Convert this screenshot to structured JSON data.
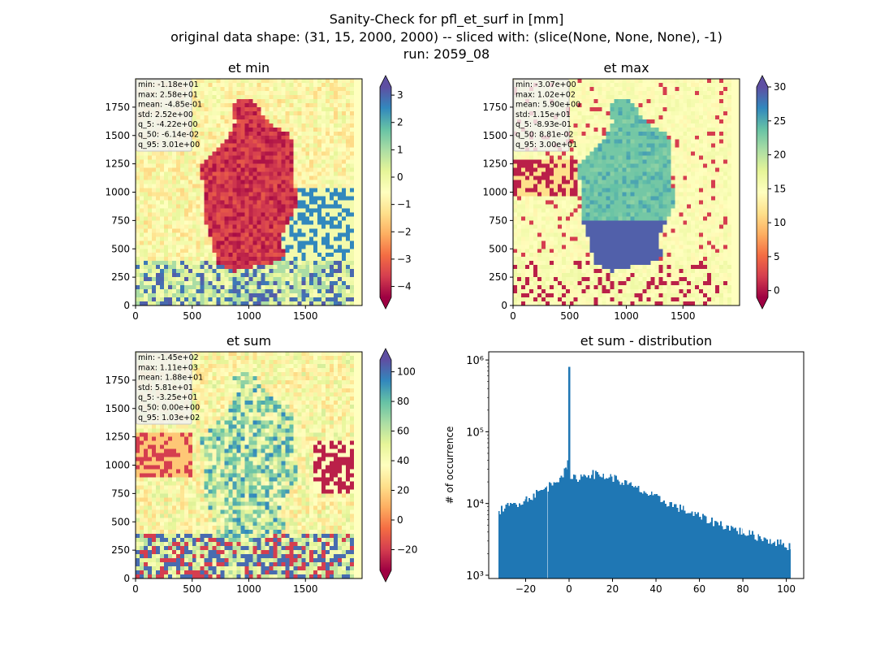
{
  "figure": {
    "suptitle_lines": [
      "Sanity-Check for pfl_et_surf in [mm]",
      "original data shape: (31, 15, 2000, 2000) -- sliced with: (slice(None, None, None), -1)",
      "run: 2059_08"
    ]
  },
  "chart_data": [
    {
      "type": "heatmap",
      "title": "et min",
      "xlabel": "",
      "ylabel": "",
      "x_ticks": [
        "0",
        "500",
        "1000",
        "1500"
      ],
      "y_ticks": [
        "0",
        "250",
        "500",
        "750",
        "1000",
        "1250",
        "1500",
        "1750"
      ],
      "grid_extent": [
        0,
        2000
      ],
      "colormap": "Spectral",
      "colorbar_range": [
        -4.4,
        3.3
      ],
      "colorbar_ticks": [
        "3",
        "2",
        "1",
        "0",
        "−1",
        "−2",
        "−3",
        "−4"
      ],
      "colorbar_extend": "both",
      "stats": [
        "min: -1.18e+01",
        "max: 2.58e+01",
        "mean: -4.85e-01",
        "std: 2.52e+00",
        "q_5: -4.22e+00",
        "q_50: -6.14e-02",
        "q_95: 3.01e+00"
      ]
    },
    {
      "type": "heatmap",
      "title": "et max",
      "xlabel": "",
      "ylabel": "",
      "x_ticks": [
        "0",
        "500",
        "1000",
        "1500"
      ],
      "y_ticks": [
        "0",
        "250",
        "500",
        "750",
        "1000",
        "1250",
        "1500",
        "1750"
      ],
      "grid_extent": [
        0,
        2000
      ],
      "colormap": "Spectral",
      "colorbar_range": [
        -1,
        30
      ],
      "colorbar_ticks": [
        "30",
        "25",
        "20",
        "15",
        "10",
        "5",
        "0"
      ],
      "colorbar_extend": "both",
      "stats": [
        "min: -3.07e+00",
        "max: 1.02e+02",
        "mean: 5.90e+00",
        "std: 1.15e+01",
        "q_5: -8.93e-01",
        "q_50: 8.81e-02",
        "q_95: 3.00e+01"
      ]
    },
    {
      "type": "heatmap",
      "title": "et sum",
      "xlabel": "",
      "ylabel": "",
      "x_ticks": [
        "0",
        "500",
        "1000",
        "1500"
      ],
      "y_ticks": [
        "0",
        "250",
        "500",
        "750",
        "1000",
        "1250",
        "1500",
        "1750"
      ],
      "grid_extent": [
        0,
        2000
      ],
      "colormap": "Spectral",
      "colorbar_range": [
        -34,
        108
      ],
      "colorbar_ticks": [
        "100",
        "80",
        "60",
        "40",
        "20",
        "0",
        "−20"
      ],
      "colorbar_extend": "both",
      "stats": [
        "min: -1.45e+02",
        "max: 1.11e+03",
        "mean: 1.88e+01",
        "std: 5.81e+01",
        "q_5: -3.25e+01",
        "q_50: 0.00e+00",
        "q_95: 1.03e+02"
      ]
    },
    {
      "type": "bar",
      "title": "et sum - distribution",
      "xlabel": "",
      "ylabel": "# of occurrence",
      "y_scale": "log",
      "xlim": [
        -37,
        108
      ],
      "ylim": [
        900,
        1300000
      ],
      "x_ticks": [
        "−20",
        "0",
        "20",
        "40",
        "60",
        "80",
        "100"
      ],
      "y_ticks": [
        "10³",
        "10⁴",
        "10⁵",
        "10⁶"
      ],
      "bar_color": "#1f77b4",
      "bin_width": 0.68,
      "bins": [
        {
          "x0": -32.5,
          "x1": -32.0,
          "count": 7800
        },
        {
          "x0": -32.0,
          "x1": -20,
          "count_start": 8200,
          "count_end": 11500
        },
        {
          "x0": -20,
          "x1": -10,
          "count_start": 11500,
          "count_end": 17000
        },
        {
          "x0": -10,
          "x1": -1,
          "count_start": 17000,
          "count_end": 30000
        },
        {
          "x0": -1,
          "x1": -0.4,
          "count": 40000
        },
        {
          "x0": -0.4,
          "x1": 0.4,
          "count": 800000
        },
        {
          "x0": 0.4,
          "x1": 1.1,
          "count": 22000
        },
        {
          "x0": 1.1,
          "x1": 10,
          "count_start": 22000,
          "count_end": 26000
        },
        {
          "x0": 10,
          "x1": 20,
          "count_start": 26000,
          "count_end": 23000
        },
        {
          "x0": 20,
          "x1": 40,
          "count_start": 23000,
          "count_end": 12000
        },
        {
          "x0": 40,
          "x1": 60,
          "count_start": 12000,
          "count_end": 6500
        },
        {
          "x0": 60,
          "x1": 80,
          "count_start": 6500,
          "count_end": 4000
        },
        {
          "x0": 80,
          "x1": 102,
          "count_start": 4000,
          "count_end": 2500
        }
      ]
    }
  ]
}
